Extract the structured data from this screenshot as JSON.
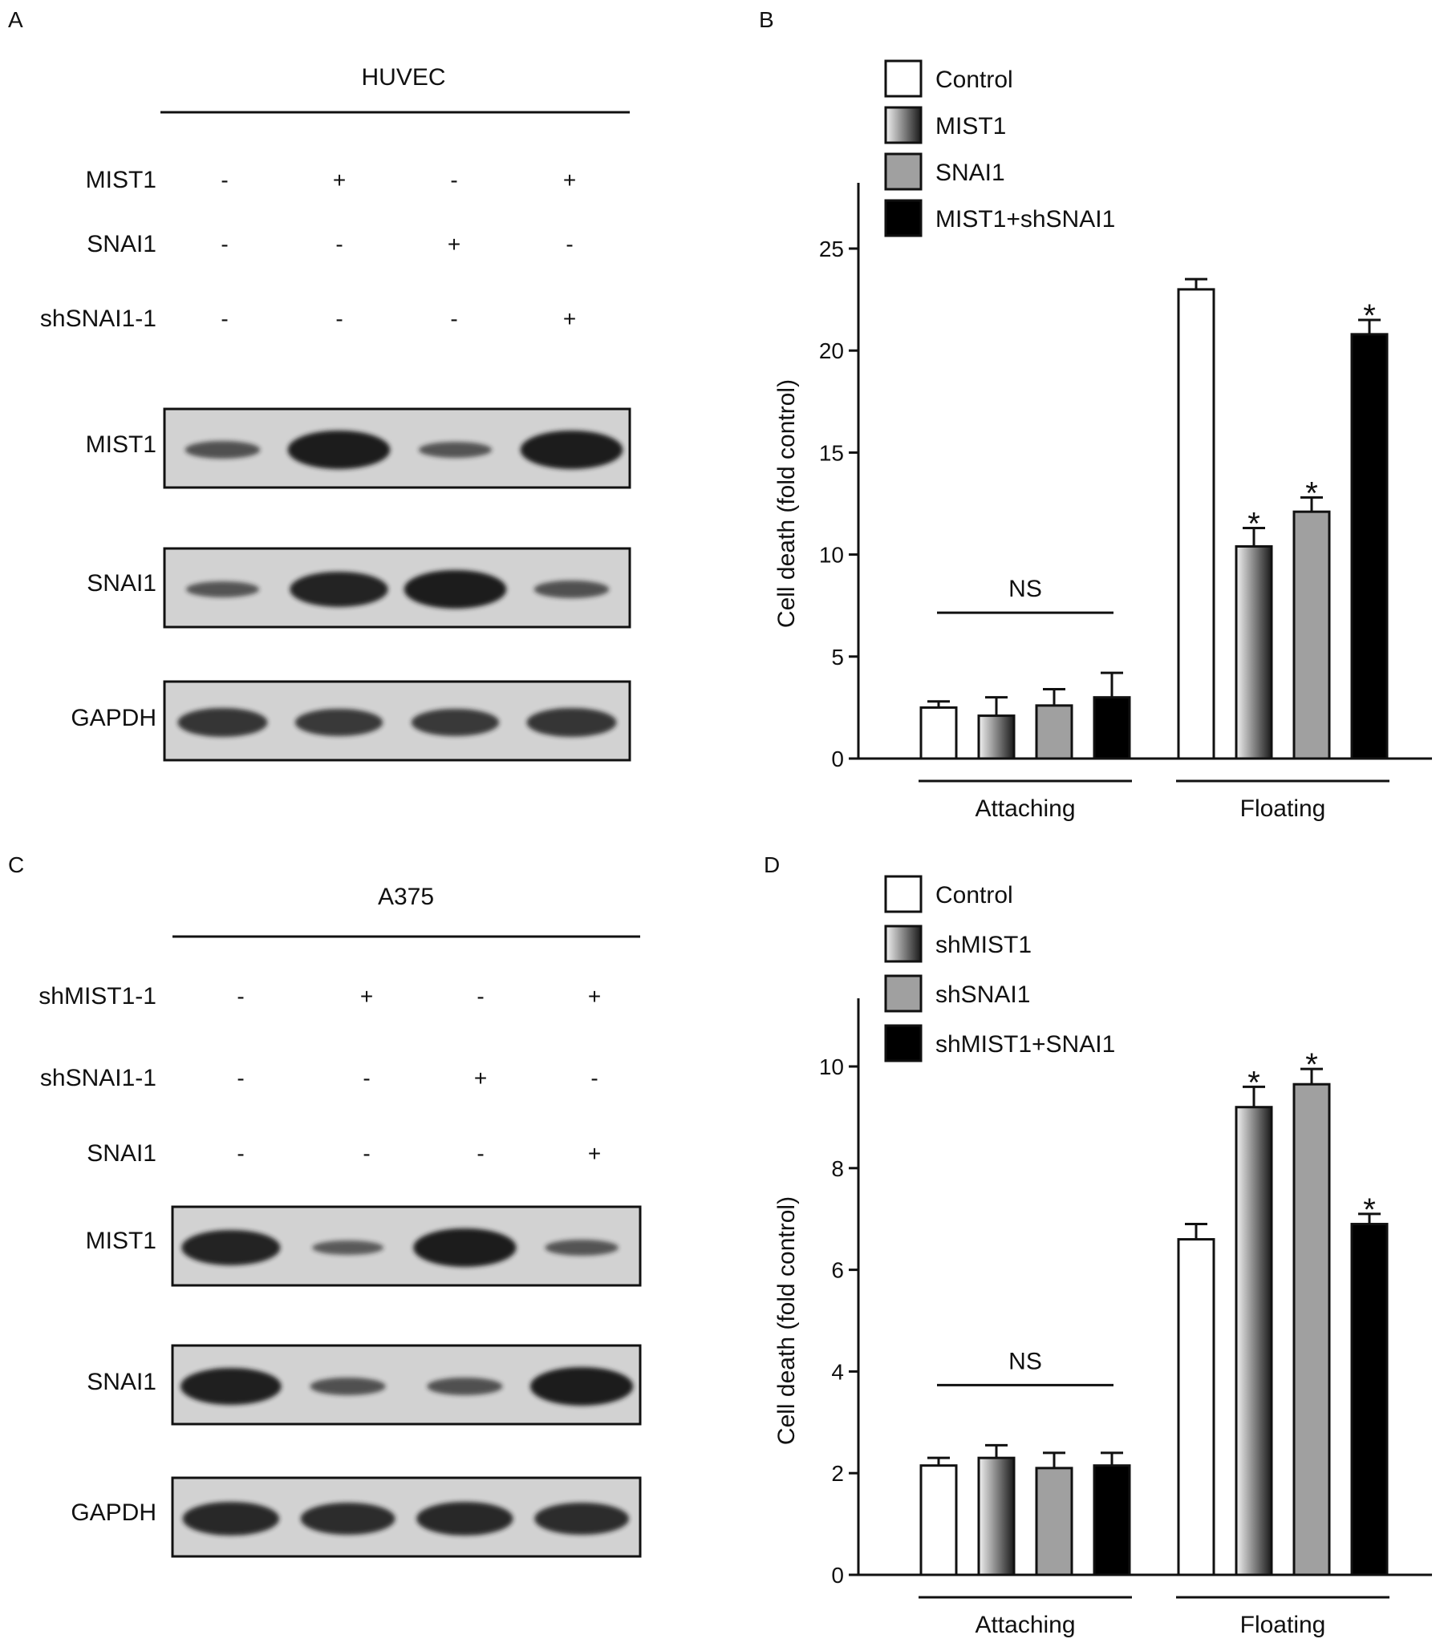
{
  "panels": {
    "A": {
      "letter": "A",
      "cell_line": "HUVEC",
      "conditions": [
        {
          "label": "MIST1",
          "signs": [
            "-",
            "+",
            "-",
            "+"
          ]
        },
        {
          "label": "SNAI1",
          "signs": [
            "-",
            "-",
            "+",
            "-"
          ]
        },
        {
          "label": "shSNAI1-1",
          "signs": [
            "-",
            "-",
            "-",
            "+"
          ]
        }
      ],
      "blots": [
        {
          "label": "MIST1",
          "intensity": [
            0.35,
            1.0,
            0.3,
            1.0
          ]
        },
        {
          "label": "SNAI1",
          "intensity": [
            0.3,
            0.9,
            1.0,
            0.35
          ]
        },
        {
          "label": "GAPDH",
          "intensity": [
            0.7,
            0.65,
            0.65,
            0.7
          ]
        }
      ]
    },
    "C": {
      "letter": "C",
      "cell_line": "A375",
      "conditions": [
        {
          "label": "shMIST1-1",
          "signs": [
            "-",
            "+",
            "-",
            "+"
          ]
        },
        {
          "label": "shSNAI1-1",
          "signs": [
            "-",
            "-",
            "+",
            "-"
          ]
        },
        {
          "label": "SNAI1",
          "signs": [
            "-",
            "-",
            "-",
            "+"
          ]
        }
      ],
      "blots": [
        {
          "label": "MIST1",
          "intensity": [
            0.9,
            0.25,
            1.0,
            0.3
          ]
        },
        {
          "label": "SNAI1",
          "intensity": [
            0.95,
            0.35,
            0.35,
            1.0
          ]
        },
        {
          "label": "GAPDH",
          "intensity": [
            0.85,
            0.8,
            0.85,
            0.8
          ]
        }
      ]
    }
  },
  "colors": {
    "control": "#ffffff",
    "gradient": [
      "#f2f2f2",
      "#1a1a1a"
    ],
    "grey": "#a0a0a0",
    "black": "#000000",
    "blot_bg": "#d2d2d2",
    "band": "#1c1c1c"
  },
  "chart_data": [
    {
      "panel": "B",
      "type": "bar",
      "ylabel": "Cell death (fold control)",
      "ylim": [
        0,
        25
      ],
      "yticks": [
        0,
        5,
        10,
        15,
        20,
        25
      ],
      "categories": [
        "Attaching",
        "Floating"
      ],
      "series": [
        {
          "name": "Control",
          "fill": "control",
          "values": [
            2.5,
            23.0
          ],
          "errors": [
            0.3,
            0.5
          ]
        },
        {
          "name": "MIST1",
          "fill": "gradient",
          "values": [
            2.1,
            10.4
          ],
          "errors": [
            0.9,
            0.9
          ]
        },
        {
          "name": "SNAI1",
          "fill": "grey",
          "values": [
            2.6,
            12.1
          ],
          "errors": [
            0.8,
            0.7
          ]
        },
        {
          "name": "MIST1+shSNAI1",
          "fill": "black",
          "values": [
            3.0,
            20.8
          ],
          "errors": [
            1.2,
            0.7
          ]
        }
      ],
      "annotations": [
        {
          "type": "ns",
          "category": 0,
          "text": "NS"
        },
        {
          "type": "star",
          "category": 1,
          "series": 1,
          "text": "*"
        },
        {
          "type": "star",
          "category": 1,
          "series": 2,
          "text": "*"
        },
        {
          "type": "star",
          "category": 1,
          "series": 3,
          "text": "*"
        }
      ],
      "legend_position": "top-left"
    },
    {
      "panel": "D",
      "type": "bar",
      "ylabel": "Cell death (fold control)",
      "ylim": [
        0,
        10
      ],
      "yticks": [
        0,
        2,
        4,
        6,
        8,
        10
      ],
      "categories": [
        "Attaching",
        "Floating"
      ],
      "series": [
        {
          "name": "Control",
          "fill": "control",
          "values": [
            2.15,
            6.6
          ],
          "errors": [
            0.15,
            0.3
          ]
        },
        {
          "name": "shMIST1",
          "fill": "gradient",
          "values": [
            2.3,
            9.2
          ],
          "errors": [
            0.25,
            0.4
          ]
        },
        {
          "name": "shSNAI1",
          "fill": "grey",
          "values": [
            2.1,
            9.65
          ],
          "errors": [
            0.3,
            0.3
          ]
        },
        {
          "name": "shMIST1+SNAI1",
          "fill": "black",
          "values": [
            2.15,
            6.9
          ],
          "errors": [
            0.25,
            0.2
          ]
        }
      ],
      "annotations": [
        {
          "type": "ns",
          "category": 0,
          "text": "NS"
        },
        {
          "type": "star",
          "category": 1,
          "series": 1,
          "text": "*"
        },
        {
          "type": "star",
          "category": 1,
          "series": 2,
          "text": "*"
        },
        {
          "type": "star",
          "category": 1,
          "series": 3,
          "text": "*"
        }
      ],
      "legend_position": "top-left"
    }
  ]
}
